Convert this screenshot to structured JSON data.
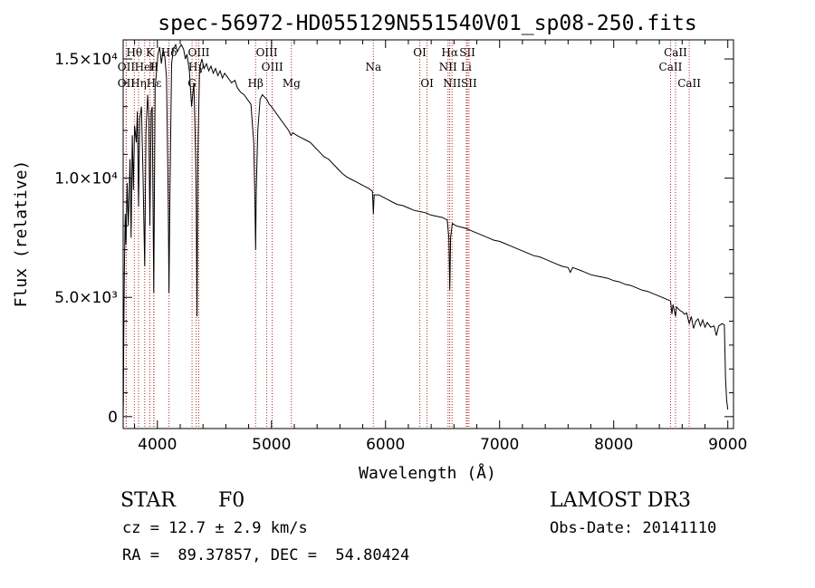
{
  "chart_data": {
    "type": "line",
    "title": "spec-56972-HD055129N551540V01_sp08-250.fits",
    "xlabel": "Wavelength (Å)",
    "ylabel": "Flux (relative)",
    "xlim": [
      3700,
      9050
    ],
    "ylim": [
      -500,
      15800
    ],
    "x_ticks": [
      {
        "value": 4000,
        "label": "4000"
      },
      {
        "value": 5000,
        "label": "5000"
      },
      {
        "value": 6000,
        "label": "6000"
      },
      {
        "value": 7000,
        "label": "7000"
      },
      {
        "value": 8000,
        "label": "8000"
      },
      {
        "value": 9000,
        "label": "9000"
      }
    ],
    "y_ticks": [
      {
        "value": 0,
        "label": "0"
      },
      {
        "value": 5000,
        "label": "5.0×10³"
      },
      {
        "value": 10000,
        "label": "1.0×10⁴"
      },
      {
        "value": 15000,
        "label": "1.5×10⁴"
      }
    ],
    "series": [
      {
        "name": "spectrum",
        "color": "#000000",
        "points": [
          [
            3700,
            0
          ],
          [
            3702,
            700
          ],
          [
            3705,
            3000
          ],
          [
            3710,
            6000
          ],
          [
            3718,
            8500
          ],
          [
            3725,
            7200
          ],
          [
            3735,
            9800
          ],
          [
            3745,
            8000
          ],
          [
            3760,
            10800
          ],
          [
            3770,
            7500
          ],
          [
            3780,
            11800
          ],
          [
            3790,
            9500
          ],
          [
            3800,
            12200
          ],
          [
            3815,
            11500
          ],
          [
            3825,
            12800
          ],
          [
            3835,
            8800
          ],
          [
            3845,
            12500
          ],
          [
            3860,
            13000
          ],
          [
            3875,
            10000
          ],
          [
            3889,
            6300
          ],
          [
            3900,
            12000
          ],
          [
            3915,
            13500
          ],
          [
            3925,
            12500
          ],
          [
            3934,
            8000
          ],
          [
            3945,
            12800
          ],
          [
            3955,
            13000
          ],
          [
            3968,
            5200
          ],
          [
            3980,
            13800
          ],
          [
            3995,
            14600
          ],
          [
            4005,
            15200
          ],
          [
            4020,
            15500
          ],
          [
            4035,
            14800
          ],
          [
            4050,
            15400
          ],
          [
            4065,
            15100
          ],
          [
            4080,
            14200
          ],
          [
            4095,
            9000
          ],
          [
            4102,
            5200
          ],
          [
            4110,
            9500
          ],
          [
            4125,
            14800
          ],
          [
            4140,
            15400
          ],
          [
            4160,
            15600
          ],
          [
            4175,
            15300
          ],
          [
            4195,
            15500
          ],
          [
            4210,
            15600
          ],
          [
            4230,
            15400
          ],
          [
            4245,
            15000
          ],
          [
            4260,
            15200
          ],
          [
            4280,
            14500
          ],
          [
            4300,
            13000
          ],
          [
            4320,
            14000
          ],
          [
            4335,
            11000
          ],
          [
            4341,
            8700
          ],
          [
            4348,
            4200
          ],
          [
            4355,
            11000
          ],
          [
            4370,
            14600
          ],
          [
            4390,
            15000
          ],
          [
            4410,
            14600
          ],
          [
            4430,
            14800
          ],
          [
            4450,
            14500
          ],
          [
            4470,
            14700
          ],
          [
            4490,
            14400
          ],
          [
            4510,
            14600
          ],
          [
            4530,
            14300
          ],
          [
            4550,
            14500
          ],
          [
            4570,
            14200
          ],
          [
            4590,
            14400
          ],
          [
            4620,
            14200
          ],
          [
            4650,
            14000
          ],
          [
            4680,
            14100
          ],
          [
            4700,
            13800
          ],
          [
            4730,
            13600
          ],
          [
            4760,
            13500
          ],
          [
            4790,
            13300
          ],
          [
            4820,
            13100
          ],
          [
            4845,
            11500
          ],
          [
            4855,
            9000
          ],
          [
            4861,
            7000
          ],
          [
            4867,
            9500
          ],
          [
            4880,
            12000
          ],
          [
            4900,
            13300
          ],
          [
            4920,
            13500
          ],
          [
            4940,
            13400
          ],
          [
            4960,
            13300
          ],
          [
            4980,
            13100
          ],
          [
            5000,
            13000
          ],
          [
            5030,
            12800
          ],
          [
            5060,
            12600
          ],
          [
            5090,
            12400
          ],
          [
            5120,
            12200
          ],
          [
            5150,
            12000
          ],
          [
            5170,
            11800
          ],
          [
            5190,
            11900
          ],
          [
            5220,
            11800
          ],
          [
            5260,
            11700
          ],
          [
            5300,
            11600
          ],
          [
            5340,
            11500
          ],
          [
            5380,
            11300
          ],
          [
            5420,
            11100
          ],
          [
            5460,
            10900
          ],
          [
            5500,
            10800
          ],
          [
            5540,
            10600
          ],
          [
            5580,
            10400
          ],
          [
            5620,
            10200
          ],
          [
            5660,
            10050
          ],
          [
            5700,
            9950
          ],
          [
            5740,
            9850
          ],
          [
            5780,
            9750
          ],
          [
            5820,
            9650
          ],
          [
            5860,
            9550
          ],
          [
            5885,
            9450
          ],
          [
            5893,
            8500
          ],
          [
            5900,
            9300
          ],
          [
            5940,
            9300
          ],
          [
            5980,
            9200
          ],
          [
            6020,
            9100
          ],
          [
            6060,
            9000
          ],
          [
            6100,
            8900
          ],
          [
            6150,
            8850
          ],
          [
            6200,
            8750
          ],
          [
            6250,
            8650
          ],
          [
            6300,
            8600
          ],
          [
            6350,
            8550
          ],
          [
            6400,
            8450
          ],
          [
            6450,
            8400
          ],
          [
            6500,
            8350
          ],
          [
            6540,
            8250
          ],
          [
            6555,
            7500
          ],
          [
            6563,
            5300
          ],
          [
            6570,
            7500
          ],
          [
            6585,
            8100
          ],
          [
            6620,
            8000
          ],
          [
            6660,
            7950
          ],
          [
            6700,
            7900
          ],
          [
            6750,
            7800
          ],
          [
            6800,
            7700
          ],
          [
            6850,
            7600
          ],
          [
            6900,
            7500
          ],
          [
            6950,
            7400
          ],
          [
            7000,
            7350
          ],
          [
            7050,
            7250
          ],
          [
            7100,
            7150
          ],
          [
            7150,
            7050
          ],
          [
            7200,
            6950
          ],
          [
            7250,
            6850
          ],
          [
            7300,
            6750
          ],
          [
            7350,
            6700
          ],
          [
            7400,
            6600
          ],
          [
            7450,
            6500
          ],
          [
            7500,
            6400
          ],
          [
            7550,
            6300
          ],
          [
            7600,
            6250
          ],
          [
            7620,
            6050
          ],
          [
            7640,
            6250
          ],
          [
            7700,
            6150
          ],
          [
            7750,
            6050
          ],
          [
            7800,
            5950
          ],
          [
            7850,
            5900
          ],
          [
            7900,
            5850
          ],
          [
            7950,
            5800
          ],
          [
            8000,
            5700
          ],
          [
            8050,
            5650
          ],
          [
            8100,
            5550
          ],
          [
            8150,
            5500
          ],
          [
            8200,
            5400
          ],
          [
            8250,
            5300
          ],
          [
            8300,
            5250
          ],
          [
            8350,
            5150
          ],
          [
            8400,
            5050
          ],
          [
            8450,
            4950
          ],
          [
            8498,
            4850
          ],
          [
            8510,
            4300
          ],
          [
            8520,
            4700
          ],
          [
            8542,
            4200
          ],
          [
            8550,
            4600
          ],
          [
            8580,
            4450
          ],
          [
            8600,
            4400
          ],
          [
            8620,
            4300
          ],
          [
            8640,
            4350
          ],
          [
            8662,
            3900
          ],
          [
            8680,
            4200
          ],
          [
            8700,
            3700
          ],
          [
            8720,
            4000
          ],
          [
            8740,
            4100
          ],
          [
            8760,
            3800
          ],
          [
            8780,
            4050
          ],
          [
            8800,
            3750
          ],
          [
            8820,
            3950
          ],
          [
            8850,
            3750
          ],
          [
            8880,
            3800
          ],
          [
            8900,
            3400
          ],
          [
            8920,
            3800
          ],
          [
            8950,
            3900
          ],
          [
            8970,
            3850
          ],
          [
            8980,
            1600
          ],
          [
            8990,
            700
          ],
          [
            9000,
            300
          ]
        ]
      }
    ],
    "line_markers": [
      {
        "label": "Hθ",
        "x": 3798,
        "row": 1
      },
      {
        "label": "OII",
        "x": 3727,
        "row": 2
      },
      {
        "label": "OII",
        "x": 3727,
        "row": 3
      },
      {
        "label": "Hη",
        "x": 3835,
        "row": 3
      },
      {
        "label": "HeI",
        "x": 3889,
        "row": 2
      },
      {
        "label": "K",
        "x": 3934,
        "row": 1
      },
      {
        "label": "H",
        "x": 3968,
        "row": 2
      },
      {
        "label": "Hε",
        "x": 3970,
        "row": 3
      },
      {
        "label": "Hδ",
        "x": 4102,
        "row": 1
      },
      {
        "label": "G",
        "x": 4304,
        "row": 3
      },
      {
        "label": "OIII",
        "x": 4363,
        "row": 1
      },
      {
        "label": "Hγ",
        "x": 4341,
        "row": 2
      },
      {
        "label": "Hβ",
        "x": 4861,
        "row": 3
      },
      {
        "label": "OIII",
        "x": 4959,
        "row": 1
      },
      {
        "label": "OIII",
        "x": 5007,
        "row": 2
      },
      {
        "label": "Mg",
        "x": 5175,
        "row": 3
      },
      {
        "label": "Na",
        "x": 5893,
        "row": 2
      },
      {
        "label": "OI",
        "x": 6300,
        "row": 1
      },
      {
        "label": "OI",
        "x": 6364,
        "row": 3
      },
      {
        "label": "Hα",
        "x": 6563,
        "row": 1
      },
      {
        "label": "NII",
        "x": 6548,
        "row": 2
      },
      {
        "label": "NII",
        "x": 6583,
        "row": 3
      },
      {
        "label": "SII",
        "x": 6717,
        "row": 1
      },
      {
        "label": "Li",
        "x": 6708,
        "row": 2
      },
      {
        "label": "SII",
        "x": 6731,
        "row": 3
      },
      {
        "label": "CaII",
        "x": 8542,
        "row": 1
      },
      {
        "label": "CaII",
        "x": 8498,
        "row": 2
      },
      {
        "label": "CaII",
        "x": 8662,
        "row": 3
      }
    ],
    "line_marker_color": "#b22222"
  },
  "info": {
    "object_type": "STAR",
    "subclass": "F0",
    "survey": "LAMOST DR3",
    "redshift": "cz = 12.7 ± 2.9 km/s",
    "obs_date": "Obs-Date: 20141110",
    "coords": "RA =  89.37857, DEC =  54.80424"
  }
}
